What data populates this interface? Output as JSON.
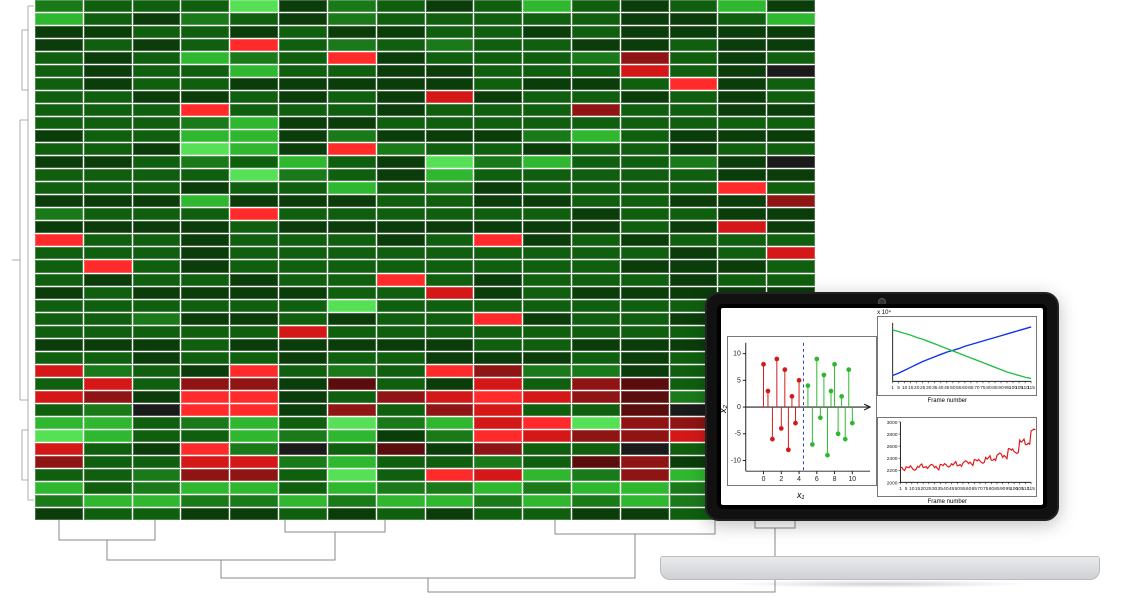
{
  "heatmap": {
    "type": "heatmap",
    "rows": 40,
    "cols": 16,
    "cell_border_color": "#ffffff",
    "palette": {
      "g5": "#0a3d0a",
      "g4": "#0f5f0f",
      "g3": "#1a7a1a",
      "g2": "#2fb82f",
      "g1": "#55e055",
      "r1": "#5a0d0d",
      "r2": "#8f1414",
      "r3": "#d41818",
      "r4": "#ff2a2a",
      "blk": "#1a1a1a"
    },
    "grid": [
      [
        "g3",
        "g4",
        "g4",
        "g4",
        "g1",
        "g5",
        "g3",
        "g4",
        "g5",
        "g4",
        "g2",
        "g4",
        "g5",
        "g4",
        "g2",
        "g5"
      ],
      [
        "g2",
        "g4",
        "g5",
        "g3",
        "g4",
        "g5",
        "g3",
        "g4",
        "g4",
        "g4",
        "g4",
        "g4",
        "g5",
        "g5",
        "g4",
        "g2"
      ],
      [
        "g5",
        "g5",
        "g4",
        "g4",
        "g5",
        "g4",
        "g5",
        "g5",
        "g4",
        "g4",
        "g5",
        "g4",
        "g5",
        "g5",
        "g5",
        "g5"
      ],
      [
        "g5",
        "g4",
        "g5",
        "g4",
        "r4",
        "g4",
        "g3",
        "g4",
        "g3",
        "g4",
        "g4",
        "g5",
        "g5",
        "g4",
        "g5",
        "g5"
      ],
      [
        "g4",
        "g5",
        "g4",
        "g2",
        "g3",
        "g4",
        "r4",
        "g5",
        "g4",
        "g4",
        "g4",
        "g3",
        "r2",
        "g4",
        "g5",
        "g4"
      ],
      [
        "g4",
        "g5",
        "g4",
        "g4",
        "g2",
        "g4",
        "g4",
        "g5",
        "g5",
        "g4",
        "g4",
        "g4",
        "r3",
        "g4",
        "g5",
        "blk"
      ],
      [
        "g4",
        "g5",
        "g4",
        "g4",
        "g5",
        "g5",
        "g5",
        "g5",
        "g5",
        "g4",
        "g5",
        "g5",
        "g4",
        "r4",
        "g5",
        "g4"
      ],
      [
        "g4",
        "g4",
        "g5",
        "g5",
        "g4",
        "g5",
        "g4",
        "g5",
        "r3",
        "g5",
        "g4",
        "g4",
        "g5",
        "g4",
        "g5",
        "g4"
      ],
      [
        "g4",
        "g4",
        "g4",
        "r4",
        "g4",
        "g4",
        "g4",
        "g5",
        "g4",
        "g4",
        "g4",
        "r2",
        "g4",
        "g4",
        "g5",
        "g5"
      ],
      [
        "g4",
        "g4",
        "g4",
        "g3",
        "g2",
        "g5",
        "g5",
        "g4",
        "g4",
        "g4",
        "g4",
        "g4",
        "g4",
        "g4",
        "g4",
        "g4"
      ],
      [
        "g5",
        "g4",
        "g4",
        "g2",
        "g2",
        "g5",
        "g3",
        "g5",
        "g5",
        "g5",
        "g3",
        "g2",
        "g4",
        "g5",
        "g5",
        "g5"
      ],
      [
        "g4",
        "g4",
        "g5",
        "g1",
        "g2",
        "g5",
        "r4",
        "g3",
        "g4",
        "g4",
        "g5",
        "g4",
        "g4",
        "g5",
        "g4",
        "g4"
      ],
      [
        "g5",
        "g5",
        "g4",
        "g3",
        "g4",
        "g2",
        "g4",
        "g5",
        "g1",
        "g3",
        "g2",
        "g4",
        "g4",
        "g3",
        "g5",
        "blk"
      ],
      [
        "g4",
        "g4",
        "g4",
        "g4",
        "g1",
        "g3",
        "g4",
        "g5",
        "g2",
        "g4",
        "g4",
        "g4",
        "g4",
        "g4",
        "g5",
        "g5"
      ],
      [
        "g4",
        "g4",
        "g4",
        "g5",
        "g4",
        "g4",
        "g2",
        "g4",
        "g3",
        "g5",
        "g4",
        "g4",
        "g4",
        "g4",
        "r4",
        "g4"
      ],
      [
        "g5",
        "g5",
        "g5",
        "g2",
        "g5",
        "g5",
        "g5",
        "g4",
        "g4",
        "g5",
        "g5",
        "g4",
        "g4",
        "g5",
        "g5",
        "r2"
      ],
      [
        "g3",
        "g4",
        "g4",
        "g4",
        "r4",
        "g4",
        "g4",
        "g4",
        "g4",
        "g4",
        "g4",
        "g5",
        "g4",
        "g4",
        "g5",
        "g5"
      ],
      [
        "g5",
        "g5",
        "g5",
        "g5",
        "g4",
        "g5",
        "g5",
        "g5",
        "g5",
        "g5",
        "g5",
        "g5",
        "g4",
        "g5",
        "r3",
        "g5"
      ],
      [
        "r4",
        "g4",
        "g4",
        "g5",
        "g4",
        "g4",
        "g4",
        "g5",
        "g4",
        "r4",
        "g5",
        "g4",
        "g5",
        "g4",
        "g4",
        "g4"
      ],
      [
        "g4",
        "g4",
        "g4",
        "g5",
        "g4",
        "g4",
        "g4",
        "g4",
        "g4",
        "g4",
        "g4",
        "g4",
        "g4",
        "g5",
        "g4",
        "r3"
      ],
      [
        "g4",
        "r4",
        "g4",
        "g5",
        "g4",
        "g4",
        "g4",
        "g4",
        "g4",
        "g4",
        "g4",
        "g4",
        "g5",
        "g5",
        "g5",
        "g4"
      ],
      [
        "g4",
        "g5",
        "g4",
        "g4",
        "g5",
        "g4",
        "g4",
        "r4",
        "g4",
        "g5",
        "g4",
        "g4",
        "g4",
        "g5",
        "g4",
        "g4"
      ],
      [
        "g5",
        "g4",
        "g5",
        "g5",
        "g5",
        "g5",
        "g4",
        "g4",
        "r3",
        "g5",
        "g4",
        "g5",
        "g5",
        "g5",
        "g5",
        "g5"
      ],
      [
        "g4",
        "g4",
        "g4",
        "g4",
        "g4",
        "g4",
        "g1",
        "g4",
        "g4",
        "g4",
        "g4",
        "g4",
        "g4",
        "g4",
        "g4",
        "g4"
      ],
      [
        "g4",
        "g4",
        "g3",
        "g5",
        "g5",
        "g4",
        "g5",
        "g4",
        "g4",
        "r4",
        "g5",
        "g4",
        "g4",
        "g5",
        "g5",
        "g5"
      ],
      [
        "g4",
        "g4",
        "g4",
        "g4",
        "g4",
        "r3",
        "g4",
        "g4",
        "g4",
        "g4",
        "g4",
        "g4",
        "g4",
        "g4",
        "g4",
        "g5"
      ],
      [
        "g5",
        "g5",
        "g5",
        "g4",
        "g5",
        "g5",
        "g5",
        "g5",
        "g5",
        "g4",
        "g4",
        "g5",
        "g5",
        "g5",
        "g5",
        "g5"
      ],
      [
        "g4",
        "g4",
        "g5",
        "g4",
        "g4",
        "g5",
        "g4",
        "g4",
        "g5",
        "g5",
        "g5",
        "g4",
        "g5",
        "g4",
        "g4",
        "g4"
      ],
      [
        "r3",
        "g3",
        "g4",
        "g5",
        "r4",
        "g4",
        "g3",
        "g4",
        "r4",
        "r2",
        "g3",
        "g3",
        "g5",
        "g4",
        "r2",
        "blk"
      ],
      [
        "g4",
        "r3",
        "g4",
        "r2",
        "r2",
        "g5",
        "r1",
        "g4",
        "g5",
        "r3",
        "g4",
        "r2",
        "r1",
        "g4",
        "g4",
        "r1"
      ],
      [
        "r3",
        "r2",
        "g5",
        "r4",
        "r4",
        "g5",
        "g4",
        "r2",
        "r3",
        "r4",
        "r3",
        "r2",
        "r1",
        "g3",
        "g5",
        "blk"
      ],
      [
        "g4",
        "g3",
        "blk",
        "r4",
        "r4",
        "g5",
        "r2",
        "g4",
        "r2",
        "r3",
        "g4",
        "g4",
        "r1",
        "blk",
        "g4",
        "g4"
      ],
      [
        "g2",
        "g2",
        "g4",
        "g3",
        "g2",
        "g4",
        "g1",
        "g3",
        "g2",
        "r3",
        "r4",
        "g1",
        "r2",
        "r2",
        "g4",
        "g2"
      ],
      [
        "g1",
        "g2",
        "g4",
        "g4",
        "g2",
        "g3",
        "g2",
        "g5",
        "g3",
        "r4",
        "r3",
        "r2",
        "r2",
        "r3",
        "g3",
        "g3"
      ],
      [
        "r3",
        "g4",
        "g5",
        "r4",
        "g3",
        "blk",
        "g4",
        "r1",
        "g5",
        "r2",
        "g4",
        "g4",
        "blk",
        "g4",
        "g4",
        "r2"
      ],
      [
        "r2",
        "g4",
        "g4",
        "r3",
        "r3",
        "g3",
        "g2",
        "g4",
        "g4",
        "g3",
        "g4",
        "r1",
        "r2",
        "g5",
        "r2",
        "g4"
      ],
      [
        "g4",
        "g4",
        "g3",
        "r2",
        "r2",
        "g4",
        "g1",
        "g4",
        "r4",
        "r3",
        "g2",
        "g3",
        "r2",
        "g2",
        "g4",
        "r1"
      ],
      [
        "g2",
        "g4",
        "g3",
        "g2",
        "g2",
        "g4",
        "g2",
        "g3",
        "g3",
        "g2",
        "g3",
        "g2",
        "g2",
        "g3",
        "g2",
        "g2"
      ],
      [
        "g3",
        "g2",
        "g2",
        "g3",
        "g3",
        "g2",
        "g3",
        "g2",
        "g2",
        "g3",
        "g2",
        "g3",
        "g2",
        "g3",
        "g2",
        "g3"
      ],
      [
        "g5",
        "g4",
        "g4",
        "g5",
        "g5",
        "g4",
        "g5",
        "g4",
        "g5",
        "g4",
        "g4",
        "g5",
        "g5",
        "g4",
        "g5",
        "g4"
      ]
    ]
  },
  "laptop": {
    "scatter_panel": {
      "type": "stem-scatter",
      "xlabel": "x₁",
      "ylabel": "x₂",
      "xlim": [
        -2,
        12
      ],
      "ylim": [
        -12,
        12
      ],
      "yticks": [
        -10,
        -5,
        0,
        5,
        10
      ],
      "xticks": [
        0,
        2,
        4,
        6,
        8,
        10
      ],
      "red_points": [
        {
          "x": 0,
          "y": 8
        },
        {
          "x": 0.5,
          "y": 3
        },
        {
          "x": 1,
          "y": -6
        },
        {
          "x": 1.5,
          "y": 9
        },
        {
          "x": 2,
          "y": -4
        },
        {
          "x": 2.4,
          "y": 7
        },
        {
          "x": 2.8,
          "y": -8
        },
        {
          "x": 3.2,
          "y": 2
        },
        {
          "x": 3.6,
          "y": -3
        },
        {
          "x": 4,
          "y": 5
        }
      ],
      "green_points": [
        {
          "x": 5,
          "y": 4
        },
        {
          "x": 5.5,
          "y": -7
        },
        {
          "x": 6,
          "y": 9
        },
        {
          "x": 6.4,
          "y": -2
        },
        {
          "x": 6.8,
          "y": 6
        },
        {
          "x": 7.2,
          "y": -9
        },
        {
          "x": 7.6,
          "y": 3
        },
        {
          "x": 8,
          "y": 8
        },
        {
          "x": 8.4,
          "y": -5
        },
        {
          "x": 8.8,
          "y": 2
        },
        {
          "x": 9.2,
          "y": -6
        },
        {
          "x": 9.6,
          "y": 7
        },
        {
          "x": 10,
          "y": -3
        }
      ],
      "divider_x": 4.5,
      "colors": {
        "red": "#d21a1a",
        "green": "#2fb82f",
        "axis": "#222",
        "divider": "#2a3bdc"
      }
    },
    "line_panel_top": {
      "type": "line",
      "xlabel": "Frame number",
      "y_scale_label": "x 10⁴",
      "xlim": [
        1,
        115
      ],
      "ylim": [
        0,
        10
      ],
      "xticks": [
        1,
        5,
        10,
        15,
        20,
        25,
        30,
        35,
        40,
        45,
        50,
        55,
        60,
        65,
        70,
        75,
        80,
        85,
        90,
        95,
        100,
        105,
        110,
        115
      ],
      "blue_series": [
        1,
        1.4,
        1.9,
        2.4,
        2.9,
        3.4,
        3.8,
        4.2,
        4.6,
        5.0,
        5.3,
        5.6,
        6.0,
        6.3,
        6.6,
        6.9,
        7.2,
        7.5,
        7.8,
        8.1,
        8.4,
        8.7,
        9.0,
        9.3
      ],
      "green_series": [
        8.8,
        8.5,
        8.2,
        7.9,
        7.5,
        7.2,
        6.8,
        6.4,
        6.0,
        5.6,
        5.2,
        4.8,
        4.4,
        4.0,
        3.6,
        3.2,
        2.8,
        2.4,
        2.0,
        1.6,
        1.3,
        1.0,
        0.7,
        0.5
      ],
      "colors": {
        "blue": "#1030f0",
        "green": "#20c040",
        "axis": "#222"
      }
    },
    "line_panel_bot": {
      "type": "line",
      "xlabel": "Frame number",
      "xlim": [
        1,
        115
      ],
      "ylim": [
        2000,
        3000
      ],
      "yticks": [
        2000,
        2200,
        2400,
        2600,
        2800,
        3000
      ],
      "xticks": [
        1,
        5,
        10,
        15,
        20,
        25,
        30,
        35,
        40,
        45,
        50,
        55,
        60,
        65,
        70,
        75,
        80,
        85,
        90,
        95,
        100,
        105,
        110,
        115
      ],
      "red_series": [
        2220,
        2260,
        2210,
        2280,
        2240,
        2290,
        2230,
        2300,
        2260,
        2320,
        2270,
        2350,
        2300,
        2380,
        2320,
        2420,
        2360,
        2480,
        2410,
        2560,
        2480,
        2700,
        2620,
        2880
      ],
      "colors": {
        "red": "#e01818",
        "axis": "#222"
      }
    }
  }
}
